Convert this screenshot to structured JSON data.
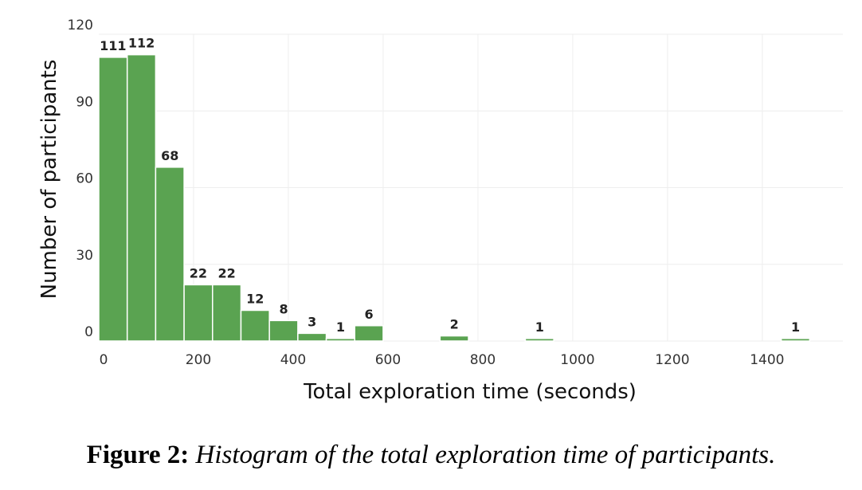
{
  "chart_data": {
    "type": "bar",
    "xlabel": "Total exploration time (seconds)",
    "ylabel": "Number of participants",
    "bin_width": 60,
    "bins": [
      {
        "start": 0,
        "value": 111
      },
      {
        "start": 60,
        "value": 112
      },
      {
        "start": 120,
        "value": 68
      },
      {
        "start": 180,
        "value": 22
      },
      {
        "start": 240,
        "value": 22
      },
      {
        "start": 300,
        "value": 12
      },
      {
        "start": 360,
        "value": 8
      },
      {
        "start": 420,
        "value": 3
      },
      {
        "start": 480,
        "value": 1
      },
      {
        "start": 540,
        "value": 6
      },
      {
        "start": 720,
        "value": 2
      },
      {
        "start": 900,
        "value": 1
      },
      {
        "start": 1440,
        "value": 1
      }
    ],
    "xlim": [
      0,
      1570
    ],
    "ylim": [
      0,
      120
    ],
    "xticks": [
      0,
      200,
      400,
      600,
      800,
      1000,
      1200,
      1400
    ],
    "yticks": [
      0,
      30,
      60,
      90,
      120
    ],
    "grid": true,
    "bar_color": "#5aa351",
    "grid_color": "#eeeeee"
  },
  "caption": {
    "label": "Figure 2:",
    "text": "Histogram of the total exploration time of participants."
  }
}
